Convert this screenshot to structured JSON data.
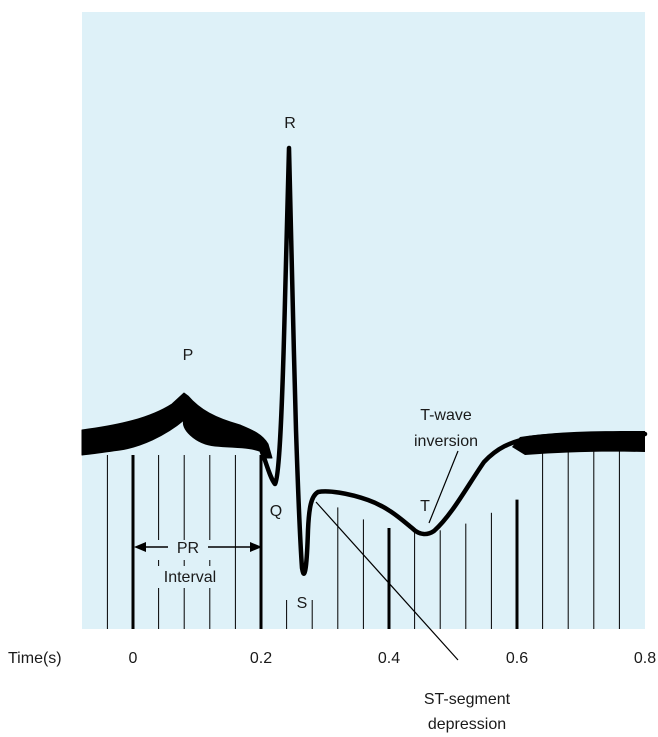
{
  "colors": {
    "panel": "#def1f8",
    "trace": "#000000",
    "grid": "#000000"
  },
  "waves": {
    "p": "P",
    "q": "Q",
    "r": "R",
    "s": "S",
    "t": "T"
  },
  "pr_interval": {
    "line1": "PR",
    "line2": "Interval"
  },
  "t_wave_note": {
    "line1": "T-wave",
    "line2": "inversion"
  },
  "st_note": {
    "line1": "ST-segment",
    "line2": "depression"
  },
  "time_axis": {
    "label": "Time(s)",
    "ticks": [
      "0",
      "0.2",
      "0.4",
      "0.6",
      "0.8"
    ]
  }
}
